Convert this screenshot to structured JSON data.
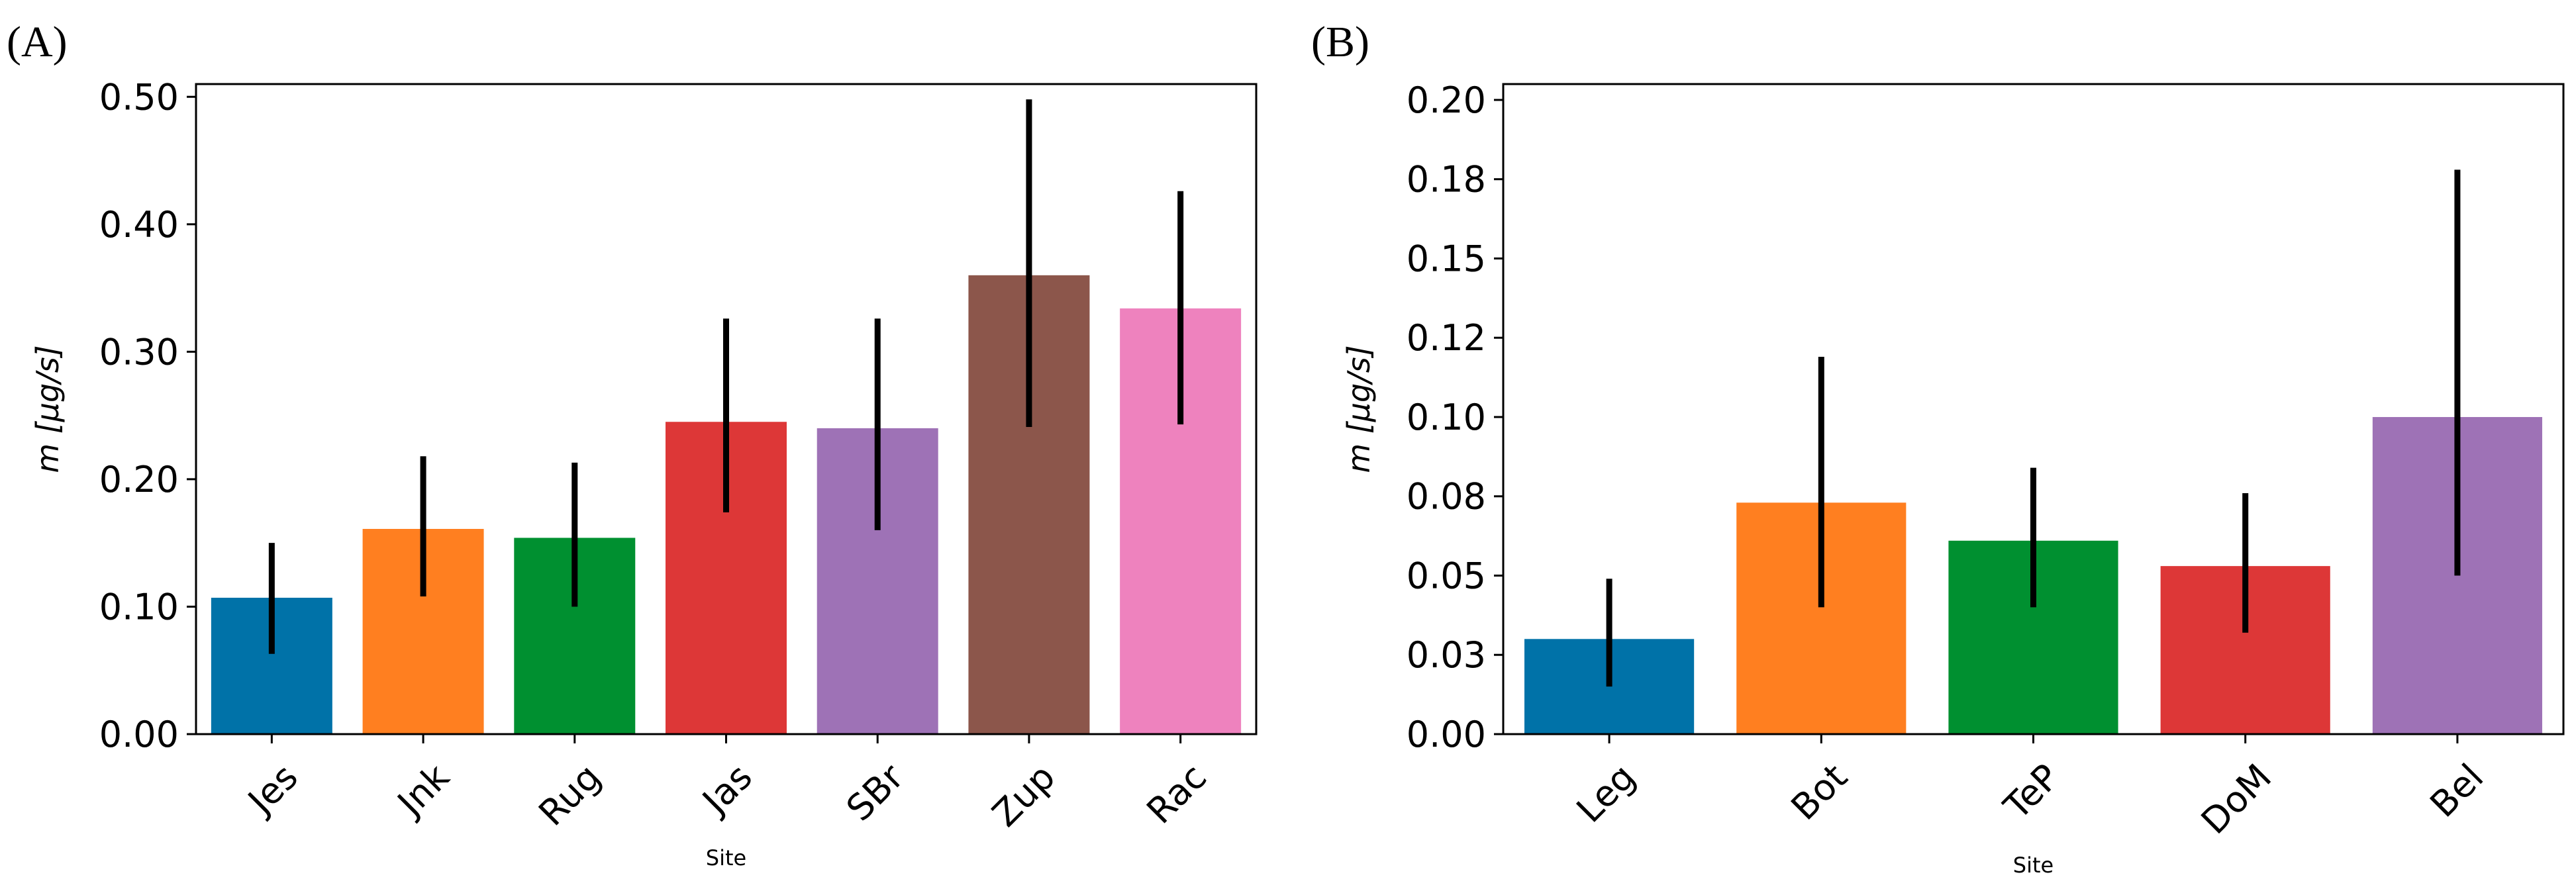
{
  "figure": {
    "panels": [
      {
        "label_text": "(A)",
        "letter": "A"
      },
      {
        "label_text": "(B)",
        "letter": "B"
      }
    ]
  },
  "chart_data": [
    {
      "type": "bar",
      "panel": "A",
      "title": "",
      "xlabel": "Site",
      "ylabel": "m [μg/s]",
      "ylim": [
        0,
        0.51
      ],
      "yticks": [
        0.0,
        0.1,
        0.2,
        0.3,
        0.4,
        0.5
      ],
      "ytick_labels": [
        "0.00",
        "0.10",
        "0.20",
        "0.30",
        "0.40",
        "0.50"
      ],
      "categories": [
        "Jes",
        "Jnk",
        "Rug",
        "Jas",
        "SBr",
        "Zup",
        "Rac"
      ],
      "values": [
        0.107,
        0.161,
        0.154,
        0.245,
        0.24,
        0.36,
        0.334
      ],
      "err_low": [
        0.063,
        0.108,
        0.1,
        0.174,
        0.16,
        0.241,
        0.243
      ],
      "err_high": [
        0.15,
        0.218,
        0.213,
        0.326,
        0.326,
        0.498,
        0.426
      ],
      "colors": [
        "#0072A8",
        "#FF7F20",
        "#009030",
        "#DD3737",
        "#9E72B6",
        "#8C564B",
        "#EE82BE"
      ]
    },
    {
      "type": "bar",
      "panel": "B",
      "title": "",
      "xlabel": "Site",
      "ylabel": "m [μg/s]",
      "ylim": [
        0,
        0.205
      ],
      "yticks": [
        0.0,
        0.025,
        0.05,
        0.075,
        0.1,
        0.125,
        0.15,
        0.175,
        0.2
      ],
      "ytick_labels": [
        "0.00",
        "0.03",
        "0.05",
        "0.08",
        "0.10",
        "0.12",
        "0.15",
        "0.18",
        "0.20"
      ],
      "categories": [
        "Leg",
        "Bot",
        "TeP",
        "DoM",
        "Bel"
      ],
      "values": [
        0.03,
        0.073,
        0.061,
        0.053,
        0.1
      ],
      "err_low": [
        0.015,
        0.04,
        0.04,
        0.032,
        0.05
      ],
      "err_high": [
        0.049,
        0.119,
        0.084,
        0.076,
        0.178
      ],
      "colors": [
        "#0072A8",
        "#FF7F20",
        "#009030",
        "#DD3737",
        "#9E72B6"
      ]
    }
  ]
}
